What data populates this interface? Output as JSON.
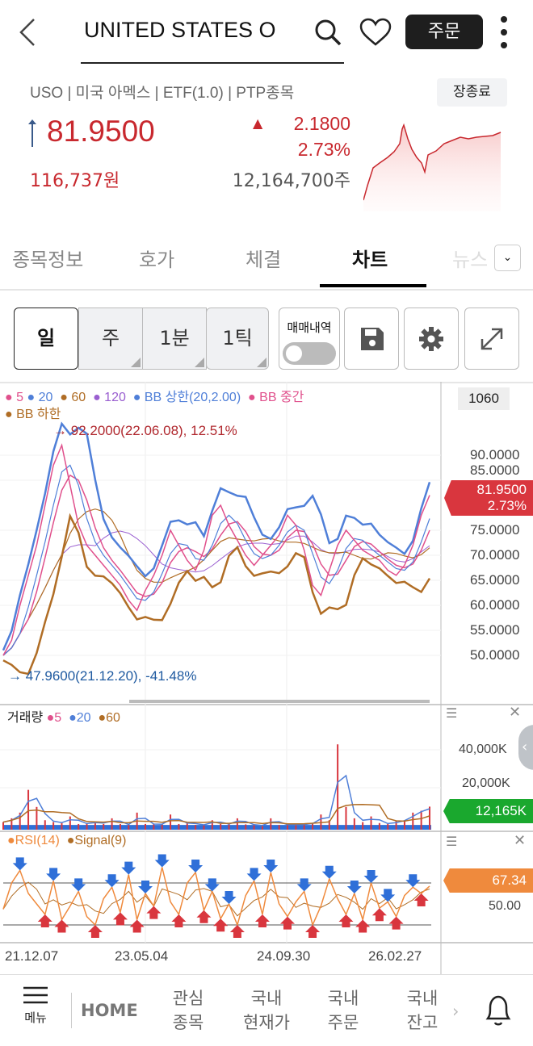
{
  "header": {
    "title": "UNITED STATES O",
    "order_label": "주문"
  },
  "info": {
    "line": "USO | 미국 아멕스 | ETF(1.0) | PTP종목",
    "status_button": "장종료",
    "price": "81.9500",
    "change": "2.1800",
    "change_pct": "2.73%",
    "krw_price": "116,737원",
    "volume": "12,164,700주"
  },
  "tabs": [
    {
      "label": "종목정보"
    },
    {
      "label": "호가"
    },
    {
      "label": "체결"
    },
    {
      "label": "차트",
      "active": true
    },
    {
      "label": "뉴스"
    }
  ],
  "toolbar": {
    "periods": [
      {
        "label": "일",
        "active": true
      },
      {
        "label": "주"
      },
      {
        "label": "1분"
      },
      {
        "label": "1틱"
      }
    ],
    "trade_history": "매매내역",
    "trade_history_on": false
  },
  "colors": {
    "up": "#c8282e",
    "ma5": "#e0508c",
    "ma20": "#4f7fd8",
    "ma60": "#b06d25",
    "ma120": "#9a5fd0",
    "volume_badge": "#1aa82e",
    "rsi_badge": "#ef8a3d",
    "ink": "#1e1e1e"
  },
  "chart_data": {
    "type": "line",
    "legend": {
      "ma5": "5",
      "ma20": "20",
      "ma60": "60",
      "ma120": "120",
      "bb_upper": "BB 상한(20,2.00)",
      "bb_mid": "BB 중간",
      "bb_lower": "BB 하한"
    },
    "count_badge": "1060",
    "high_note": "92.2000(22.06.08), 12.51%",
    "low_note": "47.9600(21.12.20), -41.48%",
    "y_ticks": [
      "90.0000",
      "85.0000",
      "75.0000",
      "70.0000",
      "65.0000",
      "60.0000",
      "55.0000",
      "50.0000"
    ],
    "ylim": [
      45,
      95
    ],
    "current": {
      "price": "81.9500",
      "pct": "2.73%"
    },
    "close": [
      50,
      53,
      60,
      66,
      72,
      80,
      88,
      92,
      84,
      76,
      72,
      70,
      68,
      66,
      64,
      61,
      59,
      63,
      66,
      70,
      75,
      72,
      69,
      67,
      71,
      78,
      80,
      76,
      73,
      70,
      68,
      70,
      72,
      74,
      78,
      76,
      71,
      64,
      62,
      67,
      72,
      75,
      73,
      71,
      70,
      69,
      67,
      66,
      68,
      72,
      78,
      82
    ],
    "x_ticks": [
      "21.12.07",
      "23.05.04",
      "24.09.30",
      "26.02.27"
    ],
    "volume": {
      "label": "거래량",
      "legend": [
        "5",
        "20",
        "60"
      ],
      "y_ticks": [
        "40,000K",
        "20,000K"
      ],
      "current": "12,165K",
      "values_k": [
        4000,
        6000,
        9000,
        21000,
        12000,
        5000,
        4000,
        3500,
        7000,
        3000,
        3500,
        4000,
        3000,
        6000,
        3000,
        2500,
        9000,
        3000,
        3000,
        2800,
        8000,
        3000,
        4000,
        2500,
        2600,
        5000,
        3000,
        3000,
        6000,
        2800,
        2500,
        2000,
        6000,
        2500,
        2800,
        2500,
        3000,
        3500,
        8000,
        5000,
        45000,
        12000,
        6000,
        4000,
        7000,
        3500,
        3000,
        4500,
        5000,
        9000,
        10000,
        12165
      ]
    },
    "rsi": {
      "label": "RSI(14)",
      "signal_label": "Signal(9)",
      "y_tick": "50.00",
      "current": "67.34",
      "values": [
        45,
        70,
        82,
        60,
        50,
        40,
        72,
        35,
        48,
        62,
        38,
        30,
        55,
        66,
        42,
        78,
        35,
        60,
        48,
        85,
        52,
        40,
        70,
        80,
        44,
        62,
        36,
        50,
        30,
        58,
        72,
        40,
        80,
        50,
        38,
        52,
        62,
        30,
        48,
        74,
        55,
        40,
        60,
        35,
        70,
        46,
        52,
        38,
        58,
        66,
        60,
        67
      ]
    }
  },
  "bottom_nav": {
    "menu": "메뉴",
    "home": "HOME",
    "items": [
      "관심\n종목",
      "국내\n현재가",
      "국내\n주문",
      "국내\n잔고"
    ]
  }
}
